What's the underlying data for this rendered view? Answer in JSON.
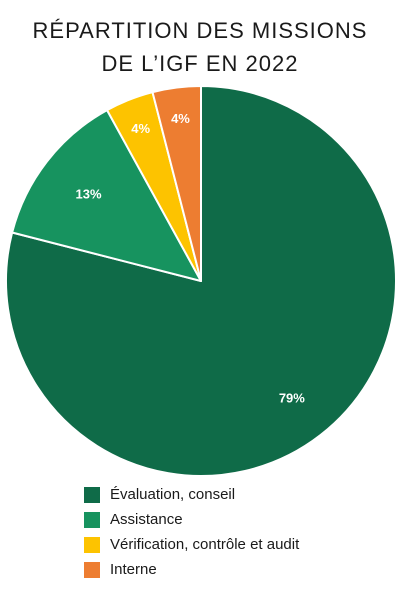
{
  "chart_data": {
    "type": "pie",
    "title_lines": [
      "RÉPARTITION DES MISSIONS",
      "DE L’IGF EN 2022"
    ],
    "slices": [
      {
        "label": "Évaluation, conseil",
        "value": 79,
        "display": "79%",
        "color": "#0f6b48"
      },
      {
        "label": "Assistance",
        "value": 13,
        "display": "13%",
        "color": "#17935f"
      },
      {
        "label": "Vérification, contrôle et audit",
        "value": 4,
        "display": "4%",
        "color": "#fdc300"
      },
      {
        "label": "Interne",
        "value": 4,
        "display": "4%",
        "color": "#ed7d31"
      }
    ],
    "legend_position": "bottom"
  }
}
